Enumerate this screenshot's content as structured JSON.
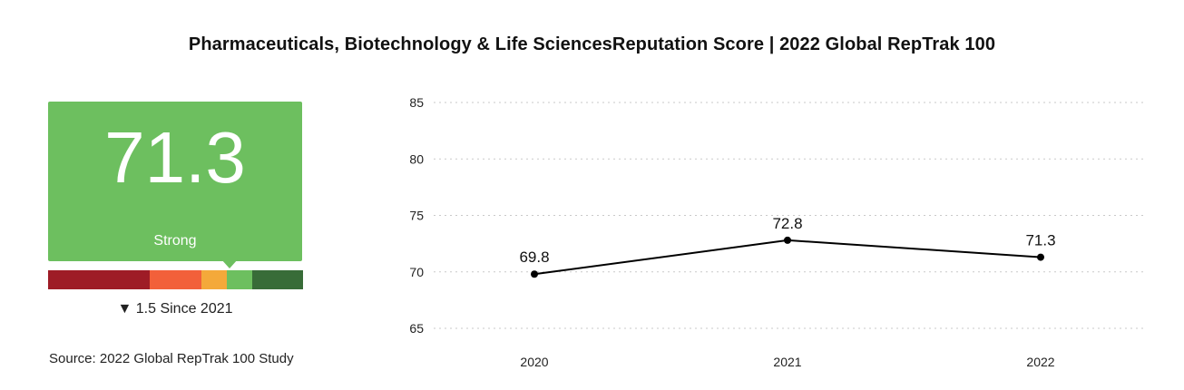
{
  "title": "Pharmaceuticals, Biotechnology & Life SciencesReputation Score | 2022 Global RepTrak 100",
  "score_card": {
    "value": "71.3",
    "label": "Strong",
    "change_arrow": "▼",
    "change_text": "1.5 Since 2021",
    "color": "#6dbf5f",
    "scale_colors": [
      "#9e1c26",
      "#f2603a",
      "#f4a93a",
      "#6dbf5f",
      "#386c38"
    ],
    "scale_weights": [
      2,
      1,
      0.5,
      0.5,
      1
    ]
  },
  "source": "Source: 2022 Global RepTrak 100 Study",
  "chart_data": {
    "type": "line",
    "title": "Pharmaceuticals, Biotechnology & Life SciencesReputation Score | 2022 Global RepTrak 100",
    "categories": [
      "2020",
      "2021",
      "2022"
    ],
    "values": [
      69.8,
      72.8,
      71.3
    ],
    "data_labels": [
      "69.8",
      "72.8",
      "71.3"
    ],
    "yticks": [
      65,
      70,
      75,
      80,
      85
    ],
    "ytick_labels": [
      "65",
      "70",
      "75",
      "80",
      "85"
    ],
    "ylim": [
      65,
      85
    ],
    "xlabel": "",
    "ylabel": "",
    "grid": true,
    "line_color": "#000000"
  }
}
